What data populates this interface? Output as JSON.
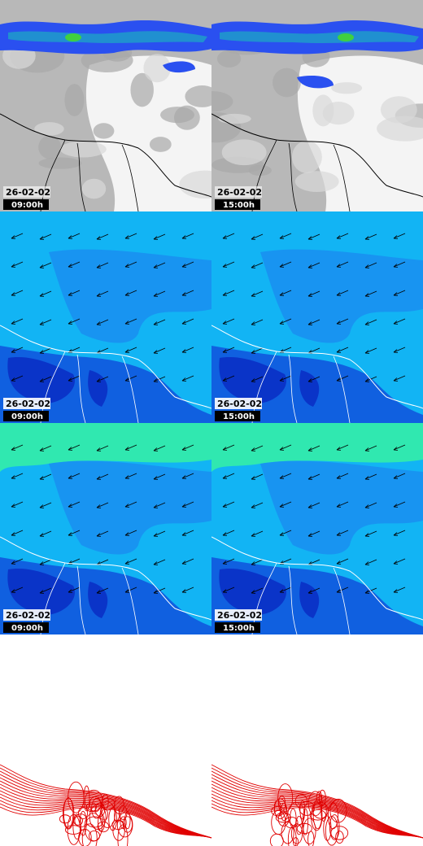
{
  "panels": [
    {
      "date": "26-02-02",
      "time": "09:00h"
    },
    {
      "date": "26-02-02",
      "time": "15:00h"
    },
    {
      "date": "26-02-02",
      "time": "09:00h"
    },
    {
      "date": "26-02-02",
      "time": "15:00h"
    },
    {
      "date": "26-02-02",
      "time": "09:00h"
    },
    {
      "date": "26-02-02",
      "time": "15:00h"
    }
  ]
}
